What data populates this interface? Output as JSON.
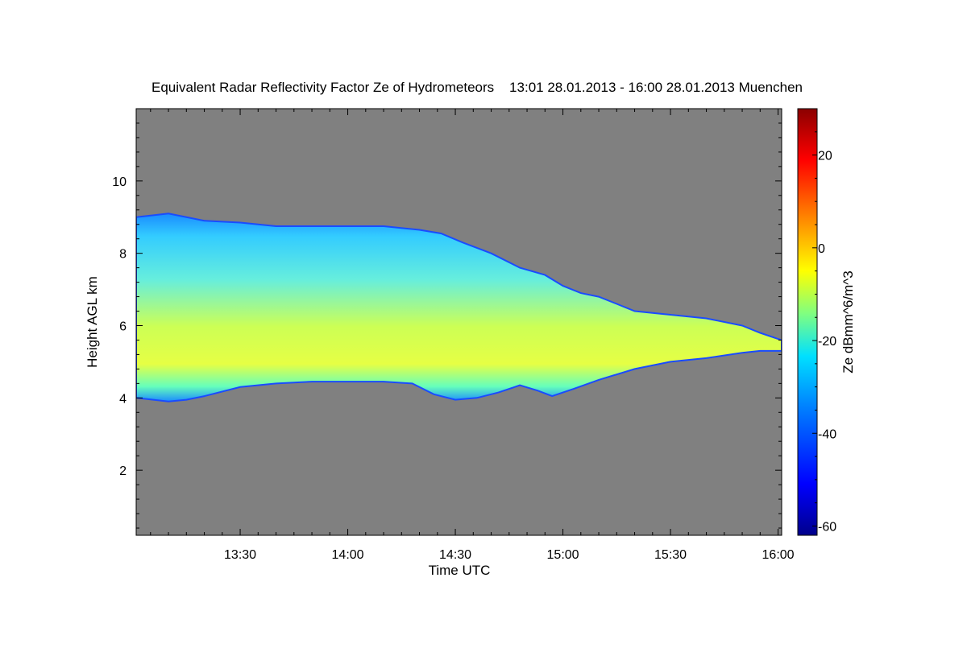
{
  "chart_data": {
    "type": "heatmap",
    "title": "Equivalent Radar Reflectivity Factor Ze of Hydrometeors    13:01 28.01.2013 - 16:00 28.01.2013 Muenchen",
    "xlabel": "Time UTC",
    "ylabel": "Height AGL km",
    "colorbar_label": "Ze dBmm^6/m^3",
    "x_range_minutes": [
      781,
      961
    ],
    "x_ticks": [
      {
        "label": "13:30",
        "minutes": 810
      },
      {
        "label": "14:00",
        "minutes": 840
      },
      {
        "label": "14:30",
        "minutes": 870
      },
      {
        "label": "15:00",
        "minutes": 900
      },
      {
        "label": "15:30",
        "minutes": 930
      },
      {
        "label": "16:00",
        "minutes": 960
      }
    ],
    "ylim": [
      0.2,
      12
    ],
    "y_ticks": [
      2,
      4,
      6,
      8,
      10
    ],
    "colorbar_range": [
      -62,
      30
    ],
    "colorbar_ticks": [
      20,
      0,
      -20,
      -40,
      -60
    ],
    "background_color": "#808080",
    "echo_top_km": [
      [
        781,
        9.0
      ],
      [
        790,
        9.1
      ],
      [
        800,
        8.9
      ],
      [
        810,
        8.85
      ],
      [
        820,
        8.75
      ],
      [
        830,
        8.75
      ],
      [
        840,
        8.75
      ],
      [
        850,
        8.75
      ],
      [
        860,
        8.65
      ],
      [
        866,
        8.55
      ],
      [
        872,
        8.3
      ],
      [
        880,
        8.0
      ],
      [
        888,
        7.6
      ],
      [
        895,
        7.4
      ],
      [
        900,
        7.1
      ],
      [
        905,
        6.9
      ],
      [
        910,
        6.8
      ],
      [
        915,
        6.6
      ],
      [
        920,
        6.4
      ],
      [
        930,
        6.3
      ],
      [
        940,
        6.2
      ],
      [
        950,
        6.0
      ],
      [
        955,
        5.8
      ],
      [
        961,
        5.6
      ]
    ],
    "echo_base_km": [
      [
        781,
        4.0
      ],
      [
        790,
        3.9
      ],
      [
        795,
        3.95
      ],
      [
        800,
        4.05
      ],
      [
        810,
        4.3
      ],
      [
        820,
        4.4
      ],
      [
        830,
        4.45
      ],
      [
        840,
        4.45
      ],
      [
        850,
        4.45
      ],
      [
        858,
        4.4
      ],
      [
        864,
        4.1
      ],
      [
        870,
        3.95
      ],
      [
        876,
        4.0
      ],
      [
        882,
        4.15
      ],
      [
        888,
        4.35
      ],
      [
        893,
        4.2
      ],
      [
        897,
        4.05
      ],
      [
        903,
        4.25
      ],
      [
        910,
        4.5
      ],
      [
        920,
        4.8
      ],
      [
        930,
        5.0
      ],
      [
        940,
        5.1
      ],
      [
        950,
        5.25
      ],
      [
        955,
        5.3
      ],
      [
        961,
        5.3
      ]
    ],
    "core_ze_dbz_approx": -10,
    "edge_ze_dbz_approx": -35
  }
}
